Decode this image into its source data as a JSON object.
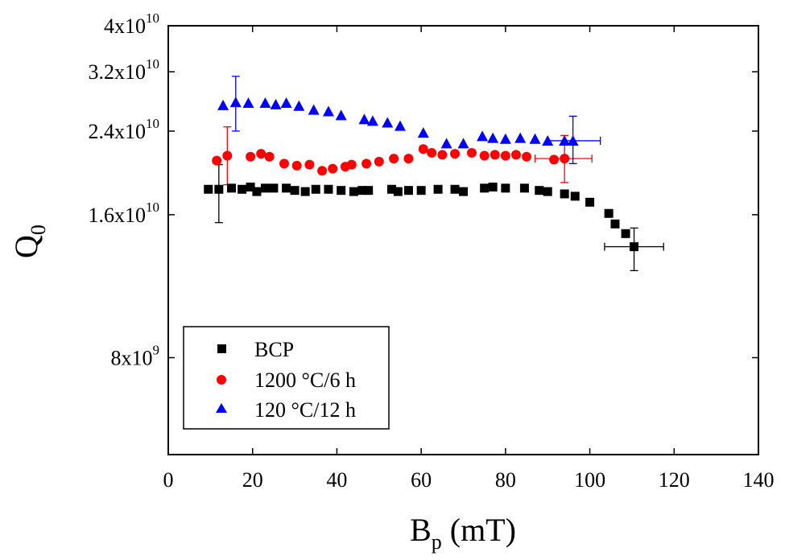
{
  "chart_data": {
    "type": "scatter",
    "title": "",
    "xlabel": {
      "main": "B",
      "sub": "p",
      "unit": " (mT)"
    },
    "ylabel": {
      "main": "Q",
      "sub": "0"
    },
    "xlim": [
      0,
      140
    ],
    "ylim": [
      5000000000,
      40000000000
    ],
    "yscale": "log",
    "x_ticks": [
      0,
      20,
      40,
      60,
      80,
      100,
      120,
      140
    ],
    "x_tick_labels": [
      "0",
      "20",
      "40",
      "60",
      "80",
      "100",
      "120",
      "140"
    ],
    "y_ticks": [
      {
        "value": 40000000000,
        "mantissa": "4x10",
        "exp": "10"
      },
      {
        "value": 32000000000,
        "mantissa": "3.2x10",
        "exp": "10"
      },
      {
        "value": 24000000000,
        "mantissa": "2.4x10",
        "exp": "10"
      },
      {
        "value": 16000000000,
        "mantissa": "1.6x10",
        "exp": "10"
      },
      {
        "value": 8000000000,
        "mantissa": "8x10",
        "exp": "9"
      }
    ],
    "grid": false,
    "legend_position": "bottom-left",
    "series": [
      {
        "name": "BCP",
        "marker": "square",
        "color": "#000000",
        "x": [
          9.5,
          12,
          15,
          17.5,
          19.5,
          21,
          23,
          25,
          28,
          30,
          32.5,
          35,
          38,
          41,
          44,
          46,
          47.5,
          53,
          54.5,
          57,
          60,
          64,
          68,
          70,
          75,
          77,
          80,
          84.5,
          88,
          90,
          94,
          96.5,
          100,
          104.5,
          106,
          108.5,
          110.5
        ],
        "y": [
          18100000000.0,
          18100000000.0,
          18200000000.0,
          18100000000.0,
          18300000000.0,
          17900000000.0,
          18200000000.0,
          18200000000.0,
          18200000000.0,
          18000000000.0,
          17900000000.0,
          18100000000.0,
          18100000000.0,
          18000000000.0,
          17900000000.0,
          18000000000.0,
          18000000000.0,
          18100000000.0,
          17900000000.0,
          18000000000.0,
          18000000000.0,
          18100000000.0,
          18100000000.0,
          17900000000.0,
          18200000000.0,
          18300000000.0,
          18200000000.0,
          18200000000.0,
          18000000000.0,
          17900000000.0,
          17700000000.0,
          17500000000.0,
          17000000000.0,
          16100000000.0,
          15300000000.0,
          14600000000.0,
          13700000000.0
        ],
        "error_bars": [
          {
            "x": 12,
            "y": 18100000000.0,
            "ylow": 15400000000.0,
            "yhigh": 20400000000.0
          },
          {
            "x": 110.5,
            "y": 13700000000.0,
            "ylow": 12200000000.0,
            "yhigh": 15000000000.0,
            "xlow": 103.5,
            "xhigh": 117.5
          }
        ]
      },
      {
        "name": "1200 °C/6 h",
        "marker": "circle",
        "color": "#ff0000",
        "x": [
          11.5,
          14,
          19.5,
          22,
          24,
          27.5,
          30.5,
          33.5,
          36.5,
          39,
          42,
          43.5,
          47,
          50,
          53.5,
          57,
          60.5,
          62.5,
          65,
          68,
          72,
          75,
          77.5,
          80,
          82.5,
          85,
          91.5,
          94
        ],
        "y": [
          20800000000.0,
          21300000000.0,
          21200000000.0,
          21500000000.0,
          21200000000.0,
          20500000000.0,
          20300000000.0,
          20400000000.0,
          19800000000.0,
          20000000000.0,
          20200000000.0,
          20400000000.0,
          20500000000.0,
          20700000000.0,
          21000000000.0,
          21000000000.0,
          22000000000.0,
          21600000000.0,
          21400000000.0,
          21500000000.0,
          21600000000.0,
          21300000000.0,
          21400000000.0,
          21300000000.0,
          21400000000.0,
          21200000000.0,
          20900000000.0,
          21000000000.0
        ],
        "error_bars": [
          {
            "x": 14,
            "y": 21300000000.0,
            "ylow": 18500000000.0,
            "yhigh": 24500000000.0
          },
          {
            "x": 94,
            "y": 21000000000.0,
            "ylow": 18700000000.0,
            "yhigh": 23500000000.0,
            "xlow": 87,
            "xhigh": 100.5
          }
        ]
      },
      {
        "name": "120 °C/12 h",
        "marker": "triangle",
        "color": "#0000ff",
        "x": [
          13,
          16,
          19,
          23,
          25.5,
          28,
          31,
          34.5,
          38,
          41,
          46.5,
          48.5,
          52,
          55,
          60.5,
          66,
          70,
          74.5,
          77,
          80,
          83.5,
          87,
          90,
          94,
          96
        ],
        "y": [
          27200000000.0,
          27600000000.0,
          27500000000.0,
          27500000000.0,
          27300000000.0,
          27500000000.0,
          27100000000.0,
          26600000000.0,
          26400000000.0,
          25900000000.0,
          25400000000.0,
          25200000000.0,
          25000000000.0,
          24600000000.0,
          23800000000.0,
          22600000000.0,
          22600000000.0,
          23400000000.0,
          23200000000.0,
          23100000000.0,
          23200000000.0,
          23100000000.0,
          22900000000.0,
          22900000000.0,
          22900000000.0
        ],
        "error_bars": [
          {
            "x": 16,
            "y": 27600000000.0,
            "ylow": 24000000000.0,
            "yhigh": 31300000000.0
          },
          {
            "x": 96,
            "y": 22900000000.0,
            "ylow": 20500000000.0,
            "yhigh": 25800000000.0,
            "xlow": 90,
            "xhigh": 102.5
          }
        ]
      }
    ]
  }
}
